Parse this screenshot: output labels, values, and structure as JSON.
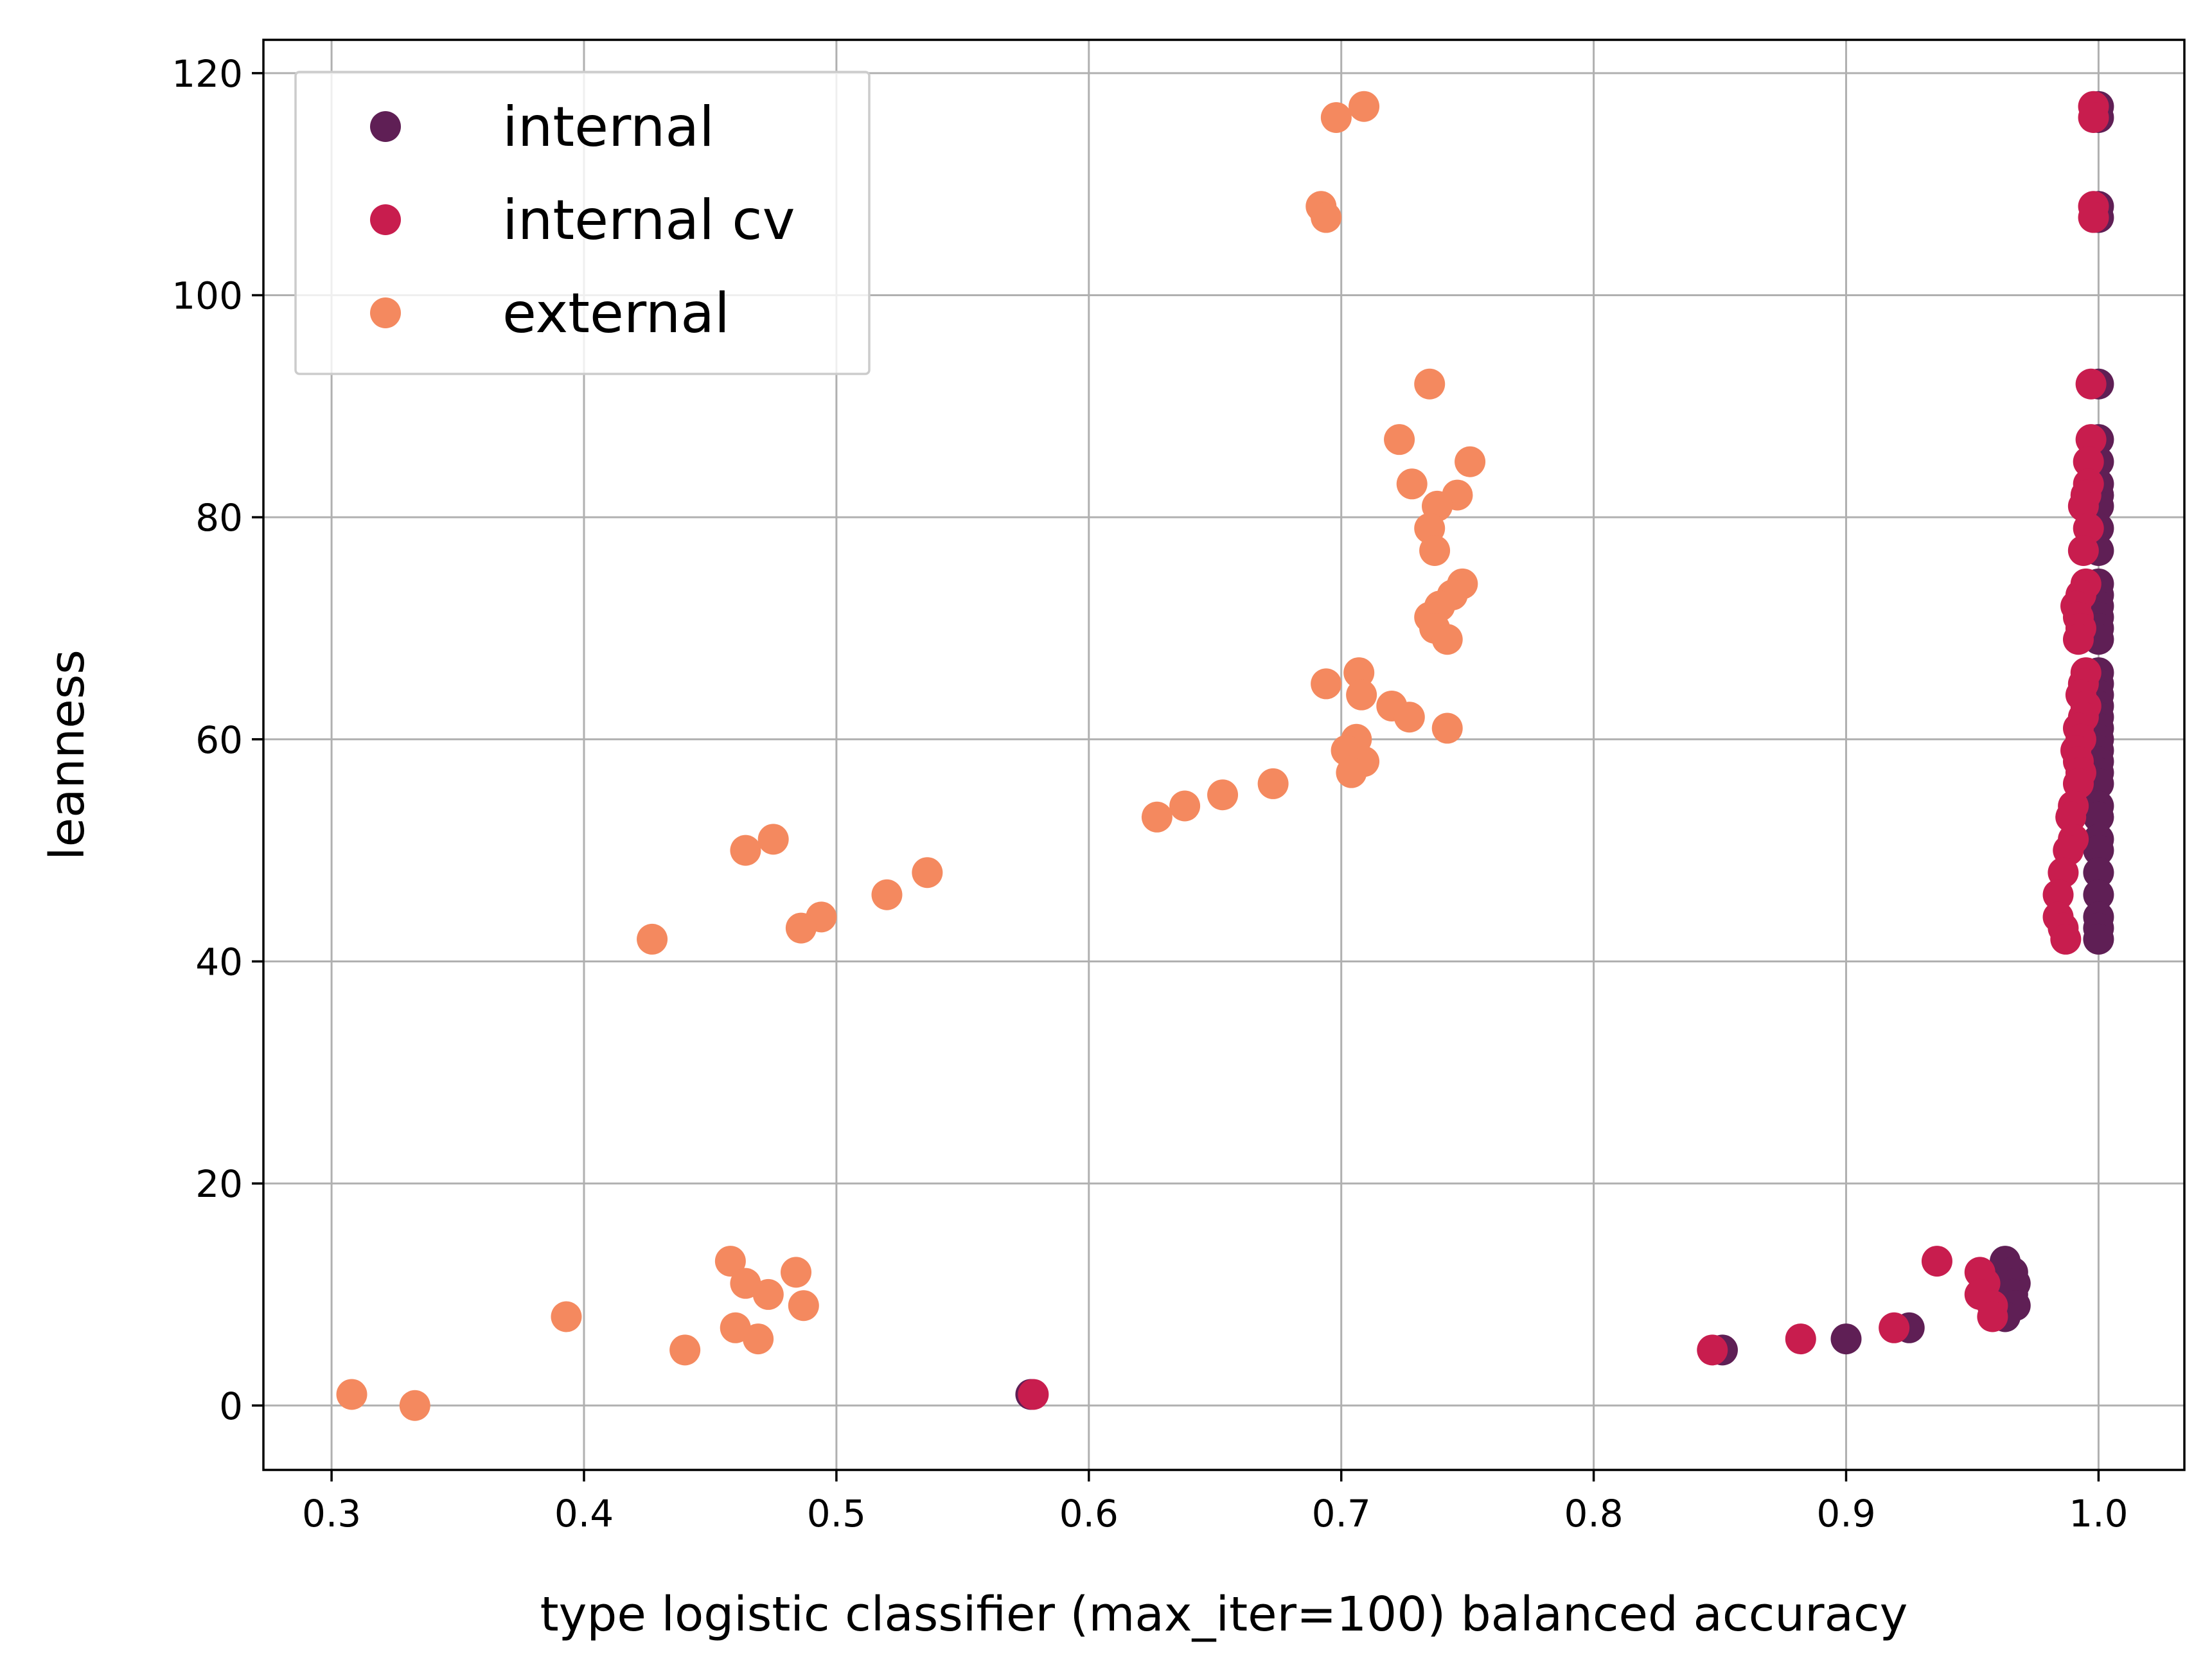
{
  "chart_data": {
    "type": "scatter",
    "title": "",
    "xlabel": "type logistic classifier (max_iter=100) balanced accuracy",
    "ylabel": "leanness",
    "xlim": [
      0.273,
      1.034
    ],
    "ylim": [
      -5.8,
      123
    ],
    "xticks": [
      0.3,
      0.4,
      0.5,
      0.6,
      0.7,
      0.8,
      0.9,
      1.0
    ],
    "xtick_labels": [
      "0.3",
      "0.4",
      "0.5",
      "0.6",
      "0.7",
      "0.8",
      "0.9",
      "1.0"
    ],
    "yticks": [
      0,
      20,
      40,
      60,
      80,
      100,
      120
    ],
    "ytick_labels": [
      "0",
      "20",
      "40",
      "60",
      "80",
      "100",
      "120"
    ],
    "grid": true,
    "legend_position": "top-left",
    "series": [
      {
        "name": "internal",
        "color": "#5f1f55",
        "points": [
          [
            1.0,
            117
          ],
          [
            1.0,
            116
          ],
          [
            1.0,
            108
          ],
          [
            1.0,
            107
          ],
          [
            1.0,
            92
          ],
          [
            1.0,
            87
          ],
          [
            1.0,
            85
          ],
          [
            1.0,
            83
          ],
          [
            1.0,
            82
          ],
          [
            1.0,
            81
          ],
          [
            1.0,
            79
          ],
          [
            1.0,
            77
          ],
          [
            1.0,
            74
          ],
          [
            1.0,
            73
          ],
          [
            1.0,
            72
          ],
          [
            1.0,
            71
          ],
          [
            1.0,
            70
          ],
          [
            1.0,
            69
          ],
          [
            1.0,
            66
          ],
          [
            1.0,
            65
          ],
          [
            1.0,
            64
          ],
          [
            1.0,
            63
          ],
          [
            1.0,
            62
          ],
          [
            1.0,
            61
          ],
          [
            1.0,
            60
          ],
          [
            1.0,
            59
          ],
          [
            1.0,
            58
          ],
          [
            1.0,
            57
          ],
          [
            1.0,
            56
          ],
          [
            1.0,
            54
          ],
          [
            1.0,
            53
          ],
          [
            1.0,
            51
          ],
          [
            1.0,
            50
          ],
          [
            1.0,
            48
          ],
          [
            1.0,
            46
          ],
          [
            1.0,
            44
          ],
          [
            1.0,
            43
          ],
          [
            1.0,
            42
          ],
          [
            0.963,
            13
          ],
          [
            0.966,
            12
          ],
          [
            0.967,
            11
          ],
          [
            0.966,
            10
          ],
          [
            0.967,
            9
          ],
          [
            0.963,
            8
          ],
          [
            0.925,
            7
          ],
          [
            0.9,
            6
          ],
          [
            0.851,
            5
          ],
          [
            0.577,
            1
          ]
        ]
      },
      {
        "name": "internal cv",
        "color": "#c81d4e",
        "points": [
          [
            0.998,
            117
          ],
          [
            0.998,
            116
          ],
          [
            0.998,
            108
          ],
          [
            0.998,
            107
          ],
          [
            0.997,
            92
          ],
          [
            0.997,
            87
          ],
          [
            0.996,
            85
          ],
          [
            0.996,
            83
          ],
          [
            0.995,
            82
          ],
          [
            0.994,
            81
          ],
          [
            0.996,
            79
          ],
          [
            0.994,
            77
          ],
          [
            0.995,
            74
          ],
          [
            0.993,
            73
          ],
          [
            0.991,
            72
          ],
          [
            0.992,
            71
          ],
          [
            0.993,
            70
          ],
          [
            0.992,
            69
          ],
          [
            0.995,
            66
          ],
          [
            0.994,
            65
          ],
          [
            0.993,
            64
          ],
          [
            0.995,
            63
          ],
          [
            0.994,
            62
          ],
          [
            0.992,
            61
          ],
          [
            0.993,
            60
          ],
          [
            0.991,
            59
          ],
          [
            0.992,
            58
          ],
          [
            0.993,
            57
          ],
          [
            0.992,
            56
          ],
          [
            0.99,
            54
          ],
          [
            0.989,
            53
          ],
          [
            0.99,
            51
          ],
          [
            0.988,
            50
          ],
          [
            0.986,
            48
          ],
          [
            0.984,
            46
          ],
          [
            0.984,
            44
          ],
          [
            0.986,
            43
          ],
          [
            0.987,
            42
          ],
          [
            0.936,
            13
          ],
          [
            0.953,
            12
          ],
          [
            0.955,
            11
          ],
          [
            0.953,
            10
          ],
          [
            0.958,
            9
          ],
          [
            0.958,
            8
          ],
          [
            0.919,
            7
          ],
          [
            0.882,
            6
          ],
          [
            0.847,
            5
          ],
          [
            0.578,
            1
          ]
        ]
      },
      {
        "name": "external",
        "color": "#f4895f",
        "points": [
          [
            0.709,
            117
          ],
          [
            0.698,
            116
          ],
          [
            0.692,
            108
          ],
          [
            0.694,
            107
          ],
          [
            0.735,
            92
          ],
          [
            0.723,
            87
          ],
          [
            0.751,
            85
          ],
          [
            0.728,
            83
          ],
          [
            0.746,
            82
          ],
          [
            0.738,
            81
          ],
          [
            0.735,
            79
          ],
          [
            0.737,
            77
          ],
          [
            0.748,
            74
          ],
          [
            0.744,
            73
          ],
          [
            0.739,
            72
          ],
          [
            0.735,
            71
          ],
          [
            0.737,
            70
          ],
          [
            0.742,
            69
          ],
          [
            0.707,
            66
          ],
          [
            0.694,
            65
          ],
          [
            0.708,
            64
          ],
          [
            0.72,
            63
          ],
          [
            0.727,
            62
          ],
          [
            0.742,
            61
          ],
          [
            0.706,
            60
          ],
          [
            0.702,
            59
          ],
          [
            0.709,
            58
          ],
          [
            0.704,
            57
          ],
          [
            0.673,
            56
          ],
          [
            0.653,
            55
          ],
          [
            0.638,
            54
          ],
          [
            0.627,
            53
          ],
          [
            0.475,
            51
          ],
          [
            0.464,
            50
          ],
          [
            0.536,
            48
          ],
          [
            0.52,
            46
          ],
          [
            0.494,
            44
          ],
          [
            0.486,
            43
          ],
          [
            0.427,
            42
          ],
          [
            0.458,
            13
          ],
          [
            0.484,
            12
          ],
          [
            0.464,
            11
          ],
          [
            0.473,
            10
          ],
          [
            0.487,
            9
          ],
          [
            0.393,
            8
          ],
          [
            0.46,
            7
          ],
          [
            0.469,
            6
          ],
          [
            0.44,
            5
          ],
          [
            0.308,
            1
          ],
          [
            0.333,
            0
          ]
        ]
      }
    ]
  }
}
